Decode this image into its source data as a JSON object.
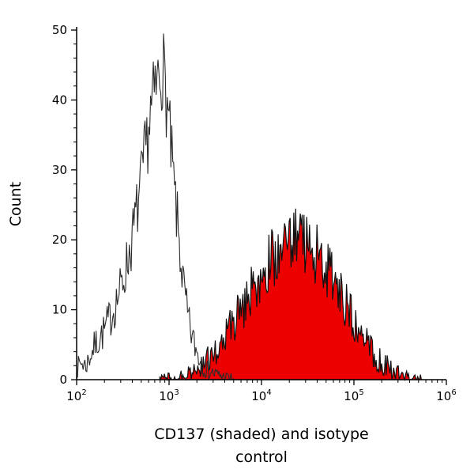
{
  "figure": {
    "ylabel": "Count",
    "xlabel_line1": "CD137 (shaded) and isotype",
    "xlabel_line2": "control"
  },
  "chart_data": {
    "type": "area",
    "subtype": "flow-cytometry-histogram-overlay",
    "title": "",
    "xlabel": "CD137 (shaded) and isotype control",
    "ylabel": "Count",
    "xscale": "log",
    "xlim": [
      100,
      1000000
    ],
    "xlog_range": [
      2,
      6
    ],
    "ylim": [
      0,
      50
    ],
    "xtick_exponents": [
      2,
      3,
      4,
      5,
      6
    ],
    "yticks": [
      0,
      10,
      20,
      30,
      40,
      50
    ],
    "ytick_minor_step": 2,
    "grid": false,
    "legend": "none",
    "axes_style": "L-shaped, ticks outward",
    "clamp_max": 49.5,
    "noise_step_decades": 0.01,
    "series": [
      {
        "name": "CD137 (shaded)",
        "style": "filled",
        "fill": "#ed0000",
        "color": "#111111",
        "peak_x": 20000,
        "peak_count": 26,
        "noise_amp": 1.0,
        "seed": 2021,
        "points": [
          [
            2.9,
            0.1
          ],
          [
            3.0,
            0.3
          ],
          [
            3.1,
            0.5
          ],
          [
            3.2,
            0.8
          ],
          [
            3.3,
            1.5
          ],
          [
            3.4,
            2.5
          ],
          [
            3.5,
            4.0
          ],
          [
            3.6,
            6.0
          ],
          [
            3.7,
            8.0
          ],
          [
            3.8,
            10.5
          ],
          [
            3.9,
            13.0
          ],
          [
            4.0,
            15.0
          ],
          [
            4.1,
            17.0
          ],
          [
            4.2,
            18.5
          ],
          [
            4.3,
            19.5
          ],
          [
            4.4,
            20.0
          ],
          [
            4.5,
            19.0
          ],
          [
            4.6,
            18.0
          ],
          [
            4.7,
            16.0
          ],
          [
            4.8,
            13.5
          ],
          [
            4.9,
            11.0
          ],
          [
            5.0,
            8.5
          ],
          [
            5.1,
            6.0
          ],
          [
            5.2,
            4.0
          ],
          [
            5.3,
            2.5
          ],
          [
            5.4,
            1.5
          ],
          [
            5.5,
            0.8
          ],
          [
            5.6,
            0.3
          ],
          [
            5.75,
            0.1
          ]
        ]
      },
      {
        "name": "isotype control",
        "style": "open",
        "fill": "none",
        "color": "#2b2b2b",
        "peak_x": 800,
        "peak_count": 49,
        "noise_amp": 0.9,
        "seed": 7,
        "points": [
          [
            2.0,
            1.5
          ],
          [
            2.05,
            2.5
          ],
          [
            2.1,
            2.0
          ],
          [
            2.15,
            3.5
          ],
          [
            2.2,
            5.0
          ],
          [
            2.3,
            7.0
          ],
          [
            2.4,
            10.0
          ],
          [
            2.5,
            14.0
          ],
          [
            2.6,
            20.0
          ],
          [
            2.7,
            28.0
          ],
          [
            2.75,
            33.0
          ],
          [
            2.8,
            38.0
          ],
          [
            2.85,
            41.0
          ],
          [
            2.9,
            44.0
          ],
          [
            2.93,
            45.0
          ],
          [
            2.96,
            42.0
          ],
          [
            3.0,
            36.0
          ],
          [
            3.05,
            28.0
          ],
          [
            3.1,
            21.0
          ],
          [
            3.15,
            14.0
          ],
          [
            3.2,
            9.0
          ],
          [
            3.25,
            6.0
          ],
          [
            3.3,
            4.0
          ],
          [
            3.35,
            2.5
          ],
          [
            3.4,
            1.5
          ],
          [
            3.5,
            0.8
          ],
          [
            3.6,
            0.4
          ],
          [
            3.7,
            0.2
          ]
        ]
      }
    ]
  }
}
